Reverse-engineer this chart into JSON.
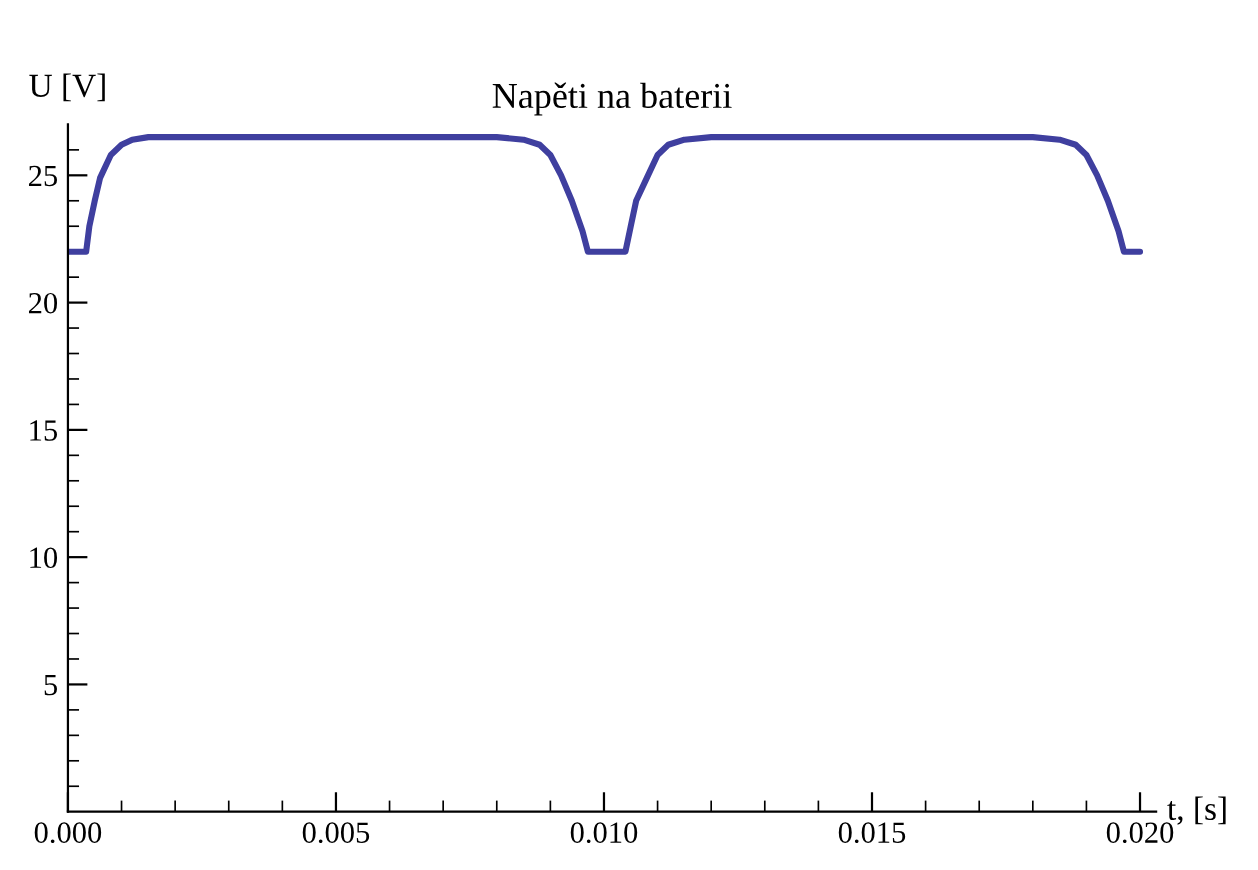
{
  "chart_data": {
    "type": "line",
    "title": "Napěti na baterii",
    "xlabel": "t, [s]",
    "ylabel": "U [V]",
    "series": [
      {
        "color": "#3f3f9f",
        "x": [
          0,
          0.00034,
          0.0004,
          0.0005,
          0.0006,
          0.0008,
          0.001,
          0.0012,
          0.0015,
          0.002,
          0.008,
          0.0085,
          0.0088,
          0.009,
          0.0092,
          0.0094,
          0.0096,
          0.0097,
          0.0104,
          0.0105,
          0.0106,
          0.0108,
          0.011,
          0.0112,
          0.0115,
          0.012,
          0.018,
          0.0185,
          0.0188,
          0.019,
          0.0192,
          0.0194,
          0.0196,
          0.0197,
          0.02
        ],
        "values": [
          22,
          22,
          23.0,
          24.0,
          24.9,
          25.8,
          26.2,
          26.4,
          26.5,
          26.5,
          26.5,
          26.4,
          26.2,
          25.8,
          25.0,
          24.0,
          22.8,
          22,
          22,
          23.0,
          24.0,
          24.9,
          25.8,
          26.2,
          26.4,
          26.5,
          26.5,
          26.4,
          26.2,
          25.8,
          25.0,
          24.0,
          22.8,
          22,
          22
        ]
      }
    ],
    "xlim": [
      0,
      0.0203
    ],
    "ylim": [
      0,
      27
    ],
    "xticks": [
      {
        "value": 0,
        "label": "0.000"
      },
      {
        "value": 0.001,
        "label": null
      },
      {
        "value": 0.002,
        "label": null
      },
      {
        "value": 0.003,
        "label": null
      },
      {
        "value": 0.004,
        "label": null
      },
      {
        "value": 0.005,
        "label": "0.005"
      },
      {
        "value": 0.006,
        "label": null
      },
      {
        "value": 0.007,
        "label": null
      },
      {
        "value": 0.008,
        "label": null
      },
      {
        "value": 0.009,
        "label": null
      },
      {
        "value": 0.01,
        "label": "0.010"
      },
      {
        "value": 0.011,
        "label": null
      },
      {
        "value": 0.012,
        "label": null
      },
      {
        "value": 0.013,
        "label": null
      },
      {
        "value": 0.014,
        "label": null
      },
      {
        "value": 0.015,
        "label": "0.015"
      },
      {
        "value": 0.016,
        "label": null
      },
      {
        "value": 0.017,
        "label": null
      },
      {
        "value": 0.018,
        "label": null
      },
      {
        "value": 0.019,
        "label": null
      },
      {
        "value": 0.02,
        "label": "0.020"
      }
    ],
    "yticks": [
      {
        "value": 1,
        "label": null
      },
      {
        "value": 2,
        "label": null
      },
      {
        "value": 3,
        "label": null
      },
      {
        "value": 4,
        "label": null
      },
      5,
      {
        "value": 6,
        "label": null
      },
      {
        "value": 7,
        "label": null
      },
      {
        "value": 8,
        "label": null
      },
      {
        "value": 9,
        "label": null
      },
      10,
      {
        "value": 11,
        "label": null
      },
      {
        "value": 12,
        "label": null
      },
      {
        "value": 13,
        "label": null
      },
      {
        "value": 14,
        "label": null
      },
      15,
      {
        "value": 16,
        "label": null
      },
      {
        "value": 17,
        "label": null
      },
      {
        "value": 18,
        "label": null
      },
      {
        "value": 19,
        "label": null
      },
      20,
      {
        "value": 21,
        "label": null
      },
      {
        "value": 22,
        "label": null
      },
      {
        "value": 23,
        "label": null
      },
      {
        "value": 24,
        "label": null
      },
      25,
      {
        "value": 26,
        "label": null
      }
    ],
    "grid": false,
    "legend": false,
    "marker": "none",
    "line_style": "solid"
  }
}
